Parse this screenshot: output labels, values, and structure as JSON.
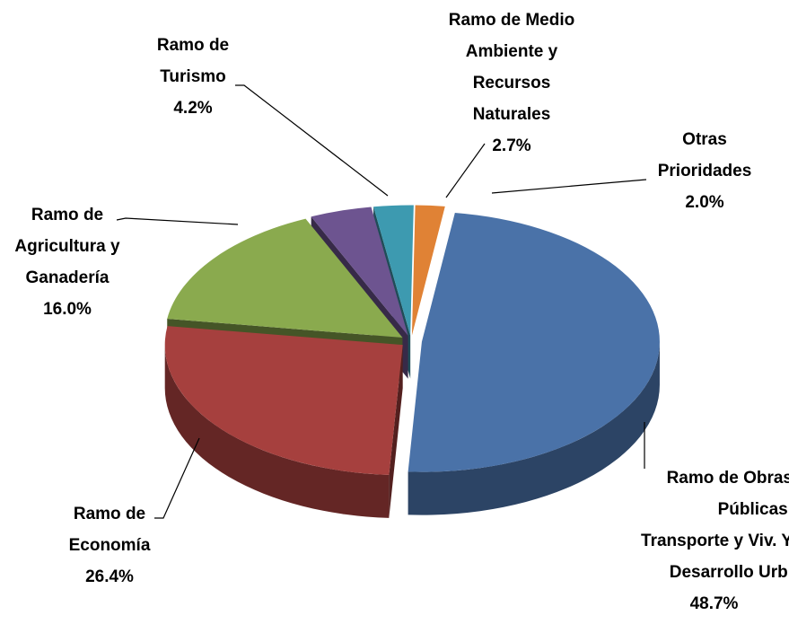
{
  "chart_data": {
    "type": "pie",
    "categories": [
      "Ramo de Obras Públicas, Transporte y Viv. Y Desarrollo Urb.",
      "Ramo de Economía",
      "Ramo de Agricultura y Ganadería",
      "Ramo de Turismo",
      "Ramo de Medio Ambiente y Recursos Naturales",
      "Otras Prioridades"
    ],
    "values": [
      48.7,
      26.4,
      16.0,
      4.2,
      2.7,
      2.0
    ],
    "value_labels": [
      "48.7%",
      "26.4%",
      "16.0%",
      "4.2%",
      "2.7%",
      "2.0%"
    ],
    "colors": [
      "#4a72a8",
      "#a6403e",
      "#8aaa4e",
      "#6d5490",
      "#3d9ab0",
      "#e08235"
    ]
  }
}
